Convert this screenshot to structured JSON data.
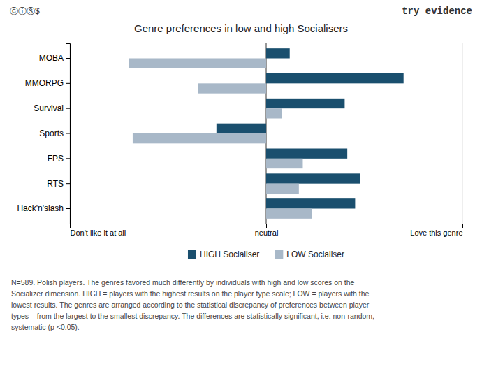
{
  "chart_data": {
    "type": "bar",
    "orientation": "horizontal",
    "title": "Genre preferences in low and high Socialisers",
    "categories": [
      "Hack'n'slash",
      "RTS",
      "FPS",
      "Sports",
      "Survival",
      "MMORPG",
      "MOBA"
    ],
    "series": [
      {
        "name": "HIGH Socialiser",
        "color": "#1a4f6e",
        "values": [
          0.68,
          0.72,
          0.62,
          -0.38,
          0.6,
          1.05,
          0.18
        ]
      },
      {
        "name": "LOW Socialiser",
        "color": "#a8b8c8",
        "values": [
          0.35,
          0.25,
          0.28,
          -1.02,
          0.12,
          -0.52,
          -1.05
        ]
      }
    ],
    "xlim": [
      -1.5,
      1.5
    ],
    "xticks": [
      {
        "value": -1.5,
        "label": "Don't like it at all"
      },
      {
        "value": 0,
        "label": "neutral"
      },
      {
        "value": 1.5,
        "label": "Love this genre"
      }
    ],
    "grid": true,
    "legend": "bottom",
    "annotations": [
      "ⓒⓘⓈ$",
      "try_evidence"
    ],
    "footnote": [
      "N=589. Polish players. The genres favored much differently by individuals with high and low scores on the",
      "Socializer dimension. HIGH = players with the highest results on the player type scale; LOW = players with the",
      "lowest results. The genres are arranged according to the statistical discrepancy of preferences between player",
      "types – from the largest to the smallest discrepancy. The differences are statistically significant, i.e. non-random,",
      "systematic (p <0.05)."
    ]
  }
}
